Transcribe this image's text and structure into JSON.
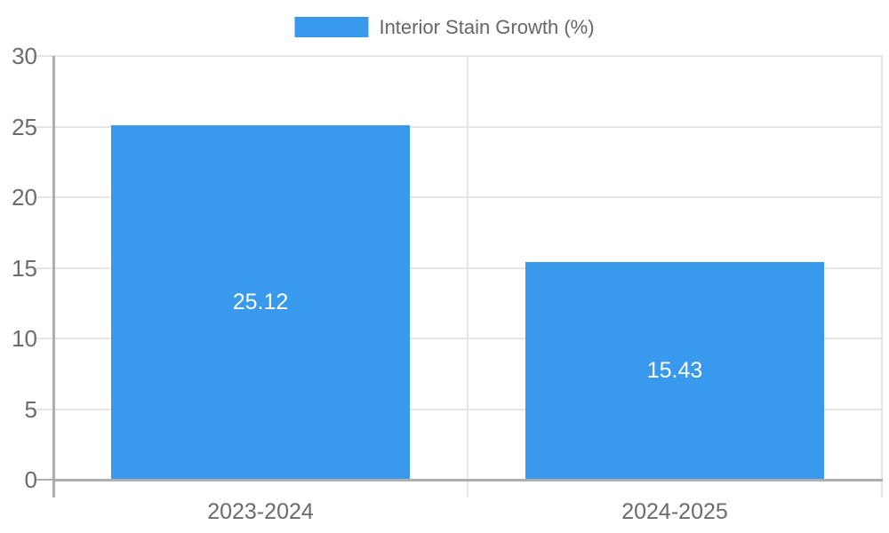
{
  "legend": {
    "label": "Interior Stain Growth (%)"
  },
  "chart_data": {
    "type": "bar",
    "title": "Interior Stain Growth (%)",
    "categories": [
      "2023-2024",
      "2024-2025"
    ],
    "series": [
      {
        "name": "Interior Stain Growth (%)",
        "values": [
          25.12,
          15.43
        ]
      }
    ],
    "value_labels": [
      "25.12",
      "15.43"
    ],
    "xlabel": "",
    "ylabel": "",
    "ylim": [
      0,
      30
    ],
    "yticks": [
      0,
      5,
      10,
      15,
      20,
      25,
      30
    ],
    "grid": true,
    "legend_position": "top",
    "colors": {
      "bar": "#3999ec",
      "bar_value_label": "#ffffff",
      "grid_line": "#e6e6e6",
      "axis_line": "#aeaeae",
      "tick_label": "#6b6b6b",
      "legend_text": "#666666",
      "background": "#ffffff"
    }
  }
}
